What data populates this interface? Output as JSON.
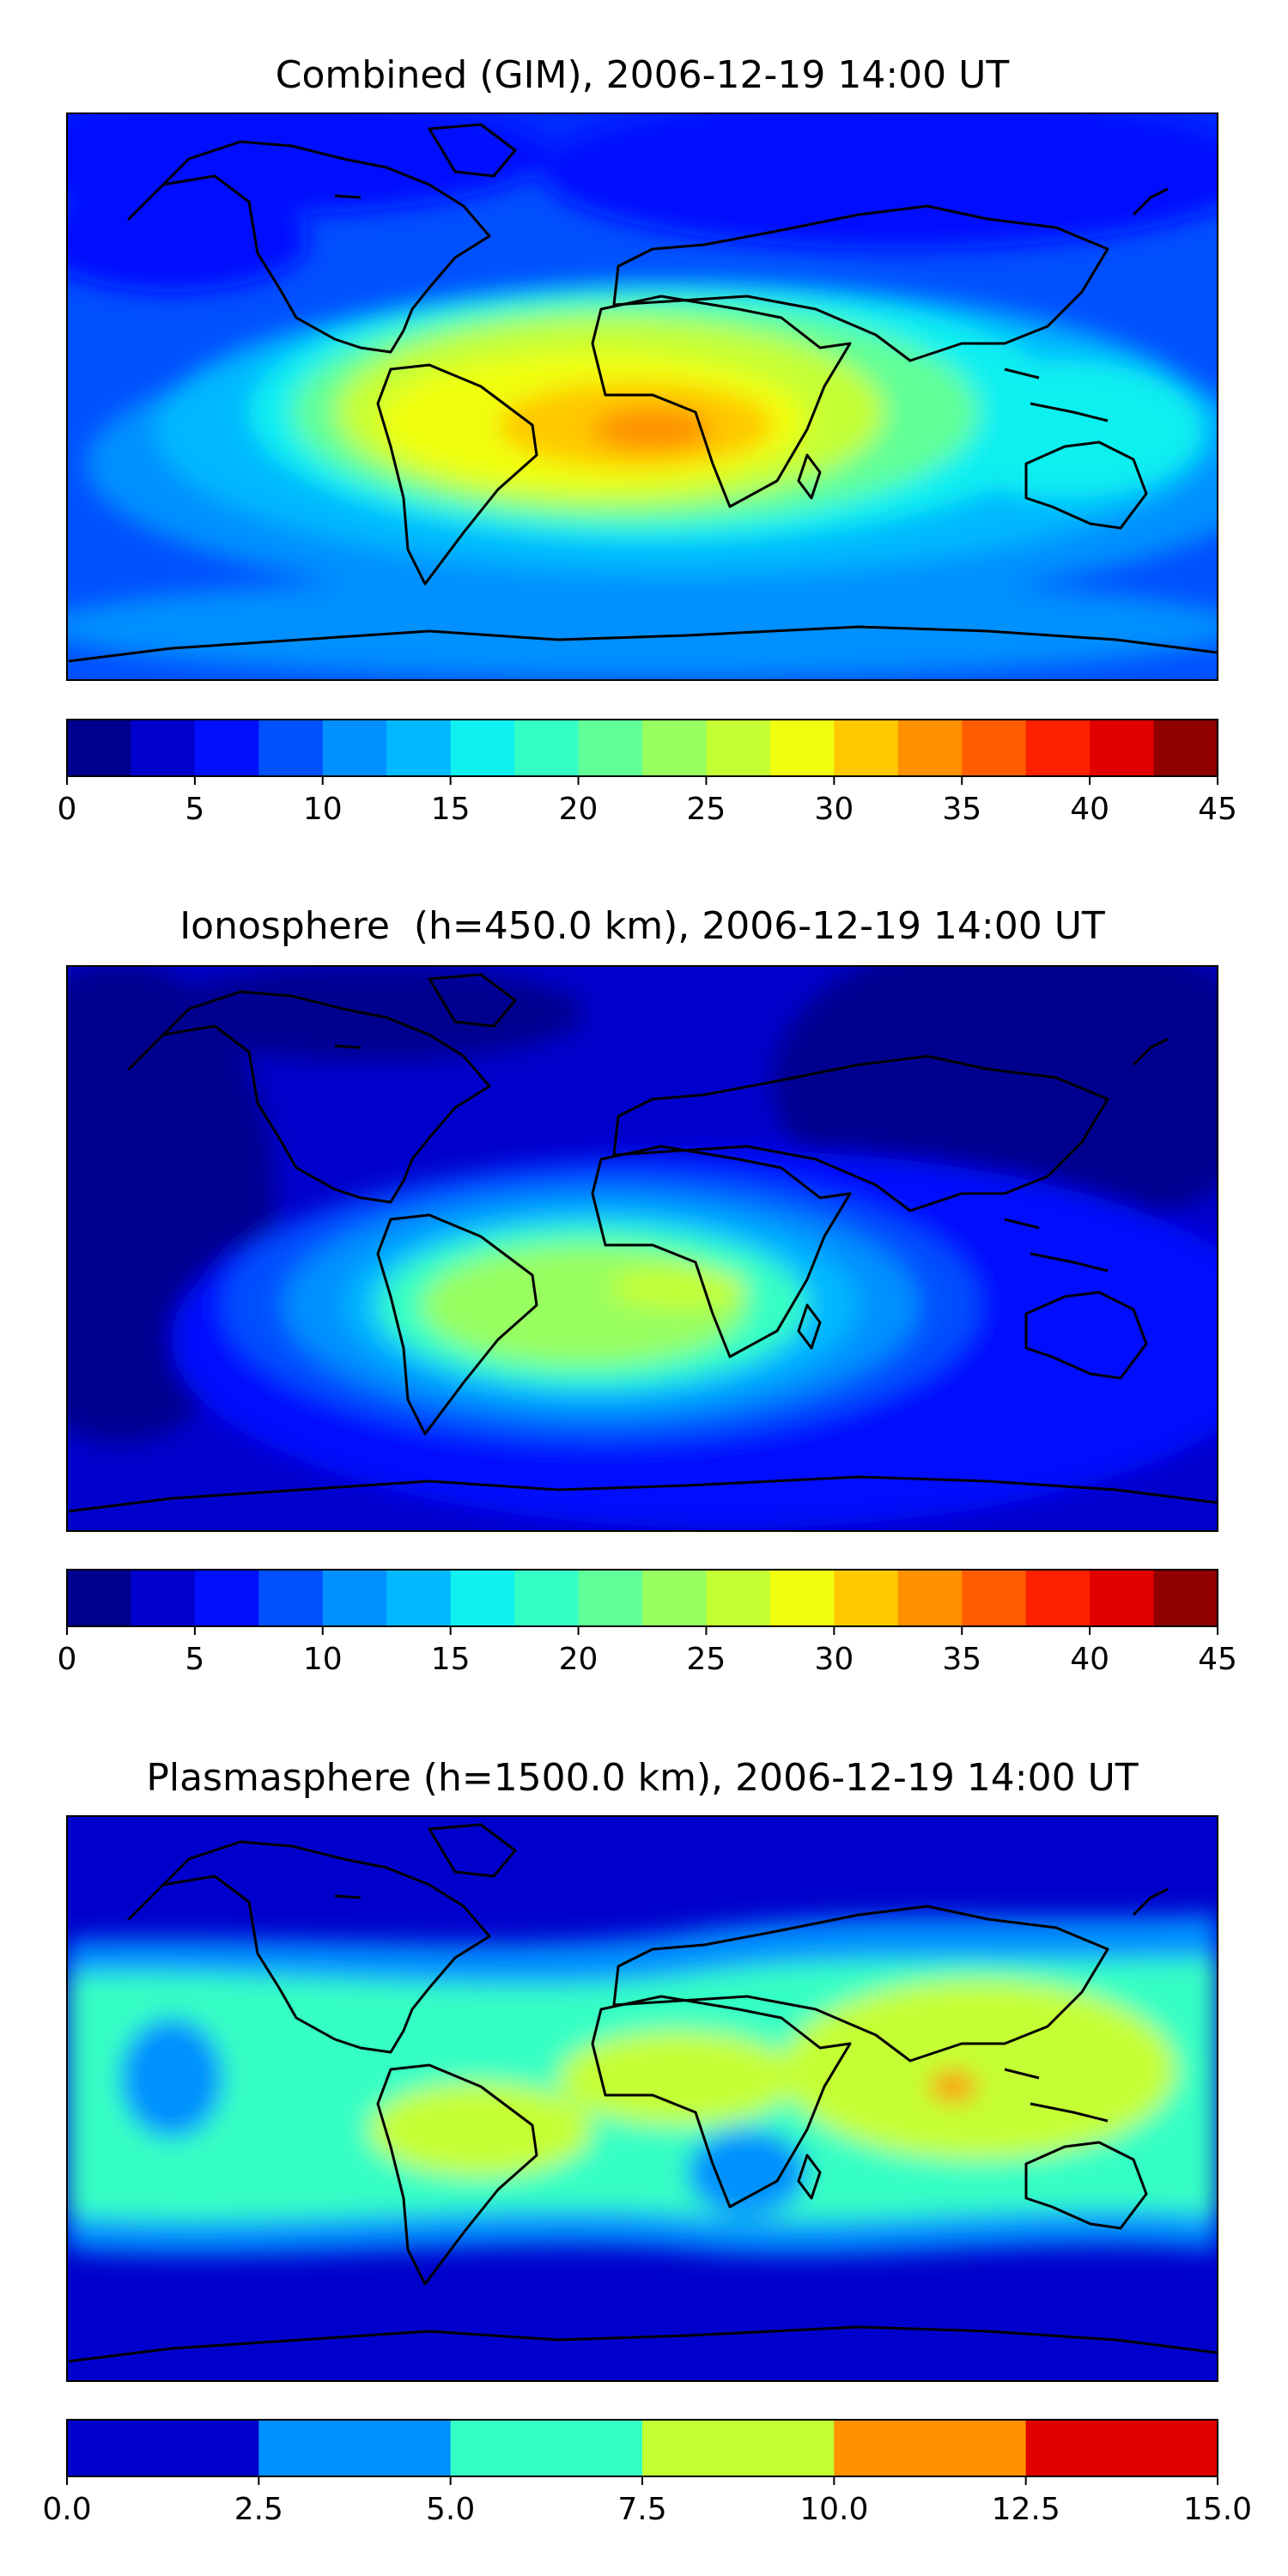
{
  "colors": {
    "jet": [
      "#00008f",
      "#0000cc",
      "#0010ff",
      "#0050ff",
      "#0090ff",
      "#00b8ff",
      "#10f0f0",
      "#34ffc4",
      "#60ff98",
      "#98ff60",
      "#c4ff34",
      "#f0ff10",
      "#ffc800",
      "#ff9000",
      "#ff5c00",
      "#ff2000",
      "#e00000",
      "#900000"
    ],
    "coast": "#000000"
  },
  "chart_data": [
    {
      "type": "heatmap",
      "title": "Combined (GIM), 2006-12-19 14:00 UT",
      "projection": "plate carree, global, coastlines",
      "value_range": [
        0,
        45
      ],
      "colorbar": {
        "levels": [
          0,
          2.5,
          5,
          7.5,
          10,
          12.5,
          15,
          17.5,
          20,
          22.5,
          25,
          27.5,
          30,
          32.5,
          35,
          37.5,
          40,
          42.5,
          45
        ],
        "ticks": [
          "0",
          "5",
          "10",
          "15",
          "20",
          "25",
          "30",
          "35",
          "40",
          "45"
        ]
      },
      "features": [
        {
          "region": "South America / South Atlantic / central Africa",
          "value": 30
        },
        {
          "region": "Gulf of Guinea / central Africa",
          "value": 33
        },
        {
          "region": "Indian Ocean / Indonesia",
          "value": 17
        },
        {
          "region": "high latitudes",
          "value": 4
        }
      ]
    },
    {
      "type": "heatmap",
      "title": "Ionosphere  (h=450.0 km), 2006-12-19 14:00 UT",
      "projection": "plate carree, global, coastlines",
      "value_range": [
        0,
        45
      ],
      "colorbar": {
        "levels": [
          0,
          2.5,
          5,
          7.5,
          10,
          12.5,
          15,
          17.5,
          20,
          22.5,
          25,
          27.5,
          30,
          32.5,
          35,
          37.5,
          40,
          42.5,
          45
        ],
        "ticks": [
          "0",
          "5",
          "10",
          "15",
          "20",
          "25",
          "30",
          "35",
          "40",
          "45"
        ]
      },
      "features": [
        {
          "region": "South Atlantic / southern Africa",
          "value": 25
        },
        {
          "region": "South America",
          "value": 20
        },
        {
          "region": "Pacific and Asia night side",
          "value": 2
        }
      ]
    },
    {
      "type": "heatmap",
      "title": "Plasmasphere (h=1500.0 km), 2006-12-19 14:00 UT",
      "projection": "plate carree, global, coastlines",
      "value_range": [
        0,
        15
      ],
      "colorbar": {
        "levels": [
          0,
          2.5,
          5,
          7.5,
          10,
          12.5,
          15
        ],
        "ticks": [
          "0.0",
          "2.5",
          "5.0",
          "7.5",
          "10.0",
          "12.5",
          "15.0"
        ]
      },
      "features": [
        {
          "region": "tropical belt",
          "value": 9
        },
        {
          "region": "Indonesia",
          "value": 11
        },
        {
          "region": "high latitudes",
          "value": 2
        }
      ]
    }
  ]
}
